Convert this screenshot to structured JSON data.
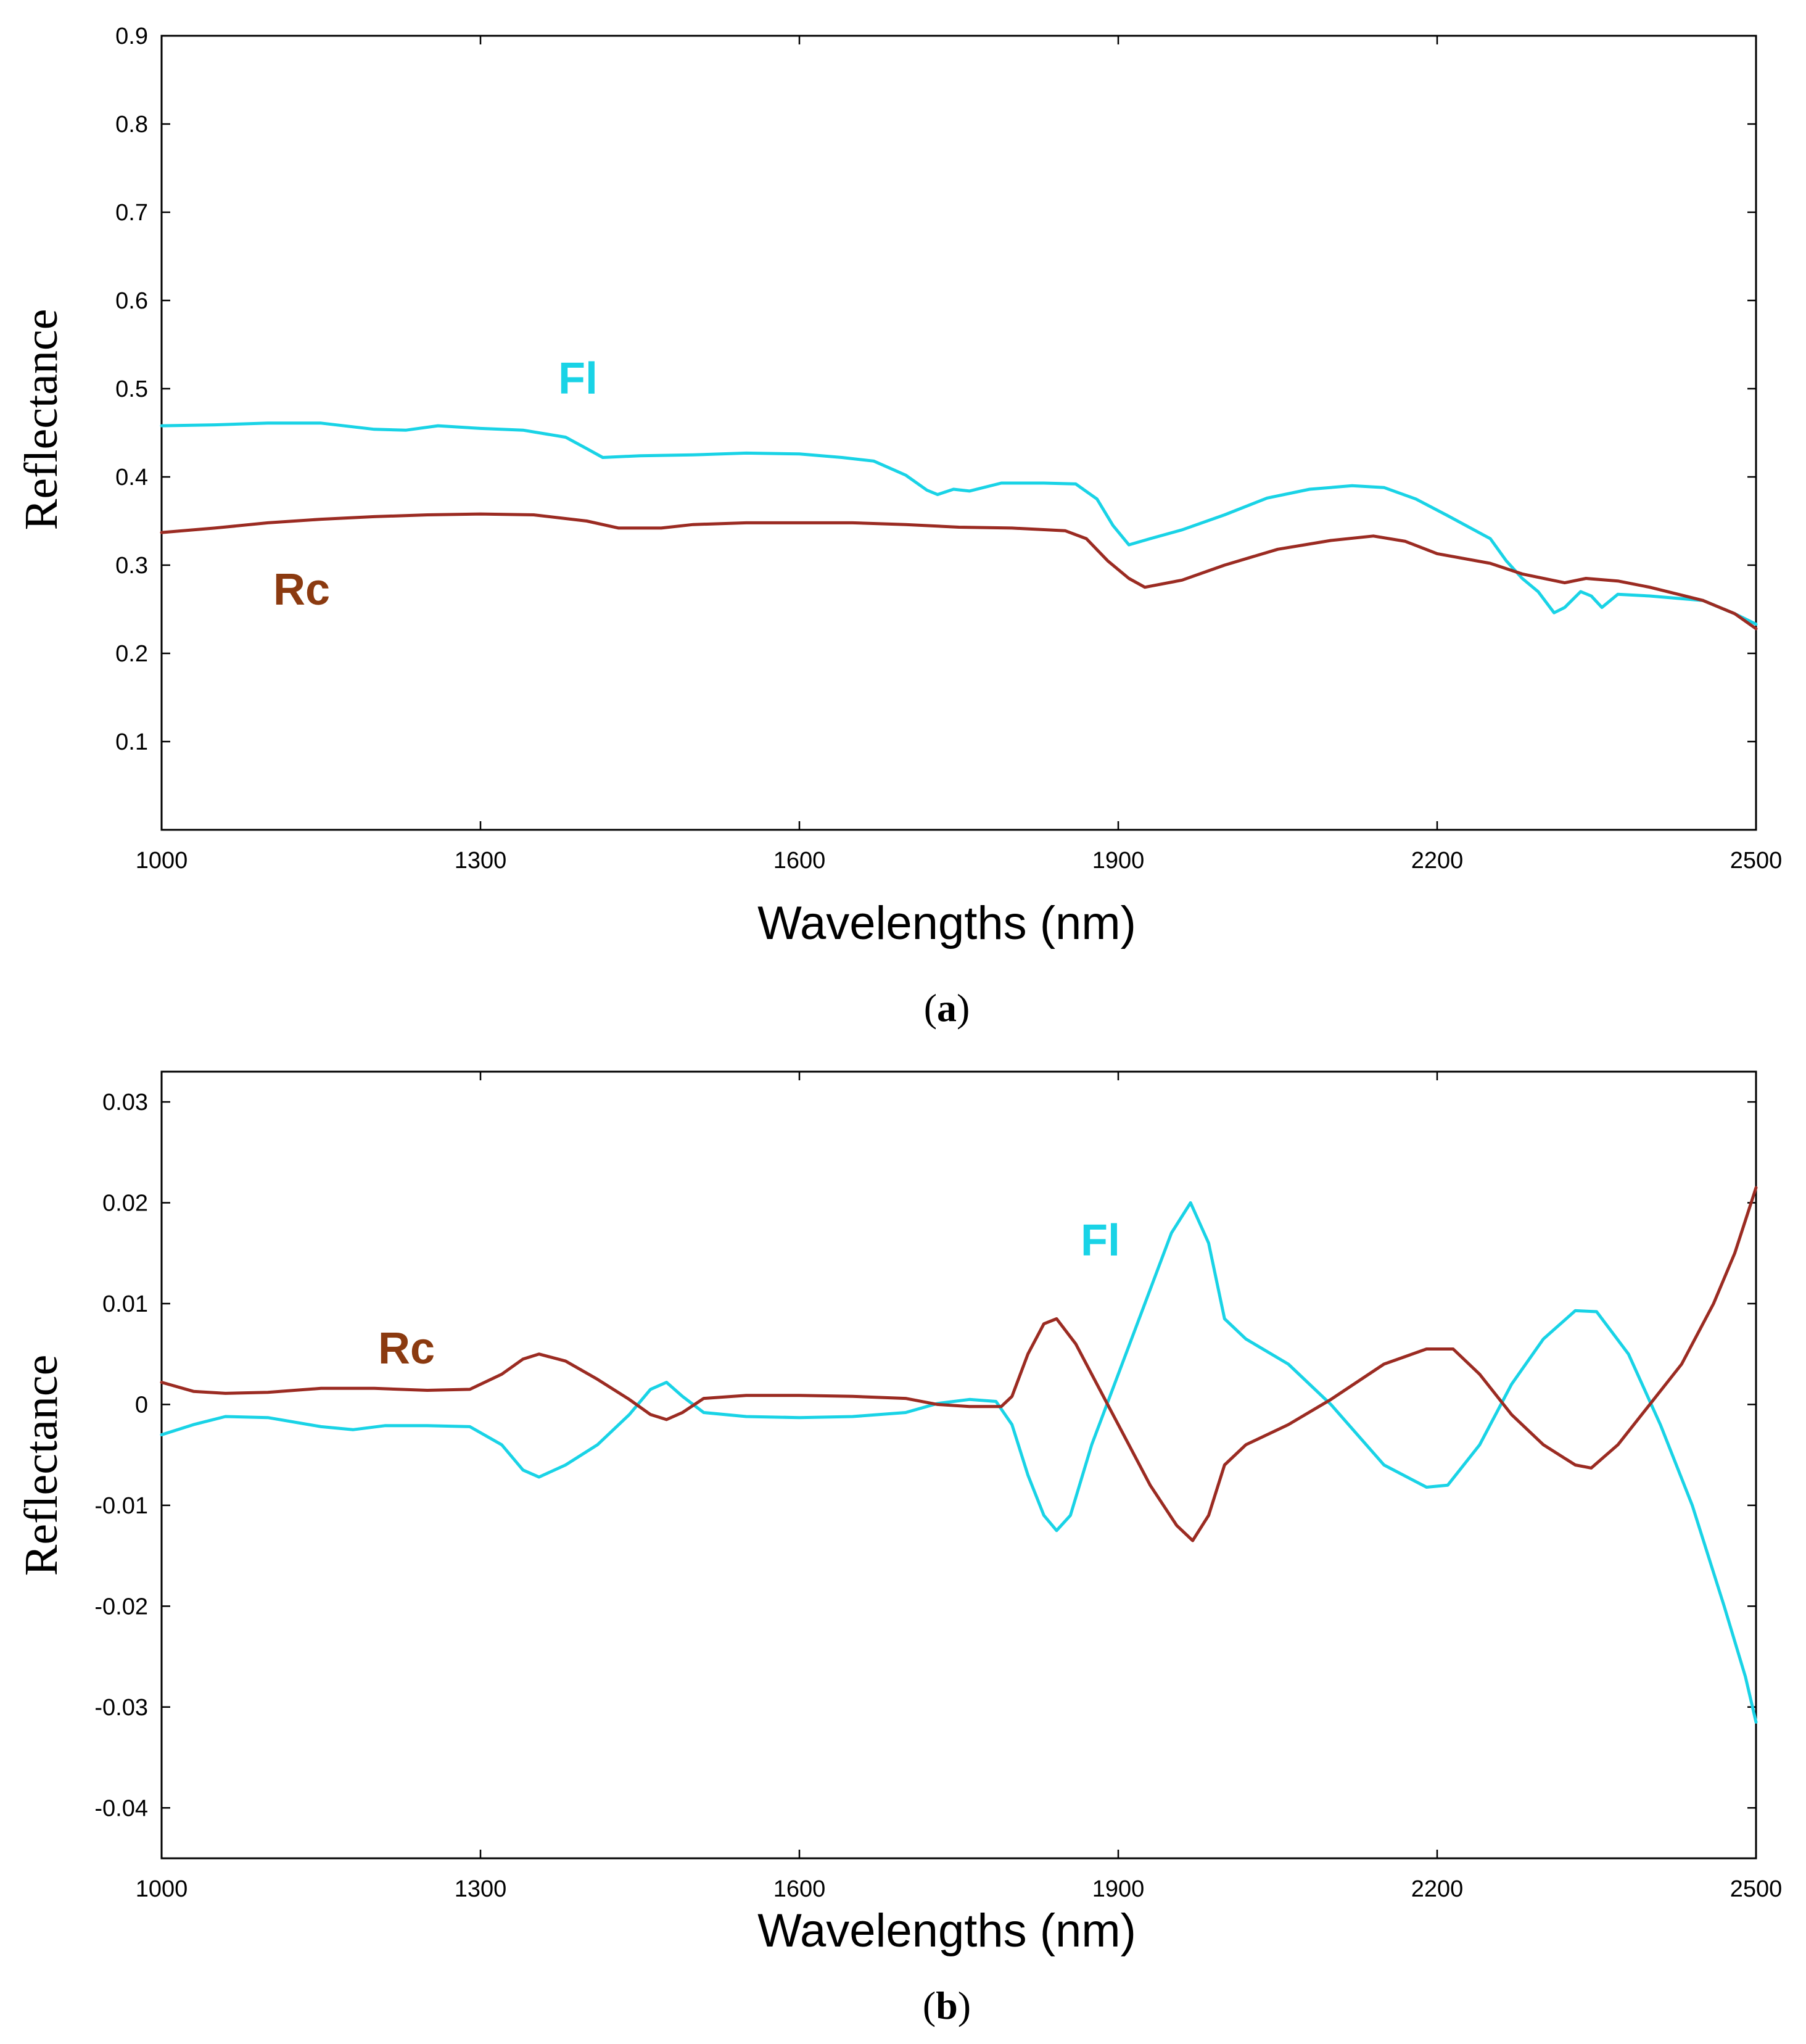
{
  "colors": {
    "fi": "#19d3e6",
    "rc": "#9b2b22",
    "rc_label": "#8b3a10"
  },
  "chart_data": [
    {
      "type": "line",
      "panel": "a",
      "caption_letter": "a",
      "xlabel": "Wavelengths (nm)",
      "ylabel": "Reflectance",
      "xlim": [
        1000,
        2500
      ],
      "ylim": [
        0,
        0.9
      ],
      "xticks": [
        1000,
        1300,
        1600,
        1900,
        2200,
        2500
      ],
      "yticks": [
        "0.1",
        "0.2",
        "0.3",
        "0.4",
        "0.5",
        "0.6",
        "0.7",
        "0.8",
        "0.9"
      ],
      "series": [
        {
          "name": "Fl",
          "color_key": "fi",
          "points": [
            [
              1000,
              0.458
            ],
            [
              1050,
              0.459
            ],
            [
              1100,
              0.461
            ],
            [
              1150,
              0.461
            ],
            [
              1200,
              0.454
            ],
            [
              1230,
              0.453
            ],
            [
              1260,
              0.458
            ],
            [
              1300,
              0.455
            ],
            [
              1340,
              0.453
            ],
            [
              1380,
              0.445
            ],
            [
              1400,
              0.432
            ],
            [
              1415,
              0.422
            ],
            [
              1450,
              0.424
            ],
            [
              1500,
              0.425
            ],
            [
              1550,
              0.427
            ],
            [
              1600,
              0.426
            ],
            [
              1640,
              0.422
            ],
            [
              1670,
              0.418
            ],
            [
              1700,
              0.402
            ],
            [
              1720,
              0.385
            ],
            [
              1730,
              0.38
            ],
            [
              1745,
              0.386
            ],
            [
              1760,
              0.384
            ],
            [
              1790,
              0.393
            ],
            [
              1830,
              0.393
            ],
            [
              1860,
              0.392
            ],
            [
              1880,
              0.375
            ],
            [
              1895,
              0.345
            ],
            [
              1910,
              0.323
            ],
            [
              1930,
              0.33
            ],
            [
              1960,
              0.34
            ],
            [
              2000,
              0.357
            ],
            [
              2040,
              0.376
            ],
            [
              2080,
              0.386
            ],
            [
              2120,
              0.39
            ],
            [
              2150,
              0.388
            ],
            [
              2180,
              0.375
            ],
            [
              2210,
              0.356
            ],
            [
              2250,
              0.33
            ],
            [
              2265,
              0.305
            ],
            [
              2280,
              0.285
            ],
            [
              2295,
              0.27
            ],
            [
              2310,
              0.246
            ],
            [
              2320,
              0.252
            ],
            [
              2335,
              0.27
            ],
            [
              2345,
              0.265
            ],
            [
              2355,
              0.252
            ],
            [
              2370,
              0.267
            ],
            [
              2400,
              0.265
            ],
            [
              2450,
              0.26
            ],
            [
              2480,
              0.245
            ],
            [
              2500,
              0.233
            ]
          ]
        },
        {
          "name": "Rc",
          "color_key": "rc",
          "points": [
            [
              1000,
              0.337
            ],
            [
              1050,
              0.342
            ],
            [
              1100,
              0.348
            ],
            [
              1150,
              0.352
            ],
            [
              1200,
              0.355
            ],
            [
              1250,
              0.357
            ],
            [
              1300,
              0.358
            ],
            [
              1350,
              0.357
            ],
            [
              1400,
              0.35
            ],
            [
              1430,
              0.342
            ],
            [
              1470,
              0.342
            ],
            [
              1500,
              0.346
            ],
            [
              1550,
              0.348
            ],
            [
              1600,
              0.348
            ],
            [
              1650,
              0.348
            ],
            [
              1700,
              0.346
            ],
            [
              1750,
              0.343
            ],
            [
              1800,
              0.342
            ],
            [
              1850,
              0.339
            ],
            [
              1870,
              0.33
            ],
            [
              1890,
              0.305
            ],
            [
              1910,
              0.285
            ],
            [
              1925,
              0.275
            ],
            [
              1960,
              0.283
            ],
            [
              2000,
              0.3
            ],
            [
              2050,
              0.318
            ],
            [
              2100,
              0.328
            ],
            [
              2140,
              0.333
            ],
            [
              2170,
              0.327
            ],
            [
              2200,
              0.313
            ],
            [
              2250,
              0.302
            ],
            [
              2280,
              0.29
            ],
            [
              2320,
              0.28
            ],
            [
              2340,
              0.285
            ],
            [
              2370,
              0.282
            ],
            [
              2400,
              0.275
            ],
            [
              2450,
              0.26
            ],
            [
              2480,
              0.245
            ],
            [
              2500,
              0.228
            ]
          ]
        }
      ],
      "labels": {
        "fi": "Fl",
        "rc": "Rc"
      }
    },
    {
      "type": "line",
      "panel": "b",
      "caption_letter": "b",
      "xlabel": "Wavelengths (nm)",
      "ylabel": "Reflectance",
      "xlim": [
        1000,
        2500
      ],
      "ylim": [
        -0.045,
        0.033
      ],
      "xticks": [
        1000,
        1300,
        1600,
        1900,
        2200,
        2500
      ],
      "yticks": [
        "0.03",
        "0.02",
        "0.01",
        "0",
        "-0.01",
        "-0.02",
        "-0.03",
        "-0.04"
      ],
      "series": [
        {
          "name": "Fl",
          "color_key": "fi",
          "points": [
            [
              1000,
              -0.003
            ],
            [
              1030,
              -0.002
            ],
            [
              1060,
              -0.0012
            ],
            [
              1100,
              -0.0013
            ],
            [
              1150,
              -0.0022
            ],
            [
              1180,
              -0.0025
            ],
            [
              1210,
              -0.0021
            ],
            [
              1250,
              -0.0021
            ],
            [
              1290,
              -0.0022
            ],
            [
              1320,
              -0.004
            ],
            [
              1340,
              -0.0065
            ],
            [
              1355,
              -0.0072
            ],
            [
              1380,
              -0.006
            ],
            [
              1410,
              -0.004
            ],
            [
              1440,
              -0.001
            ],
            [
              1460,
              0.0015
            ],
            [
              1475,
              0.0022
            ],
            [
              1490,
              0.0008
            ],
            [
              1510,
              -0.0008
            ],
            [
              1550,
              -0.0012
            ],
            [
              1600,
              -0.0013
            ],
            [
              1650,
              -0.0012
            ],
            [
              1700,
              -0.0008
            ],
            [
              1730,
              0.0001
            ],
            [
              1760,
              0.0005
            ],
            [
              1785,
              0.0003
            ],
            [
              1800,
              -0.002
            ],
            [
              1815,
              -0.007
            ],
            [
              1830,
              -0.011
            ],
            [
              1842,
              -0.0125
            ],
            [
              1855,
              -0.011
            ],
            [
              1875,
              -0.004
            ],
            [
              1900,
              0.003
            ],
            [
              1925,
              0.01
            ],
            [
              1950,
              0.017
            ],
            [
              1968,
              0.02
            ],
            [
              1985,
              0.016
            ],
            [
              2000,
              0.0085
            ],
            [
              2020,
              0.0065
            ],
            [
              2060,
              0.004
            ],
            [
              2100,
              0.0
            ],
            [
              2150,
              -0.006
            ],
            [
              2190,
              -0.0082
            ],
            [
              2210,
              -0.008
            ],
            [
              2240,
              -0.004
            ],
            [
              2270,
              0.002
            ],
            [
              2300,
              0.0065
            ],
            [
              2330,
              0.0093
            ],
            [
              2350,
              0.0092
            ],
            [
              2380,
              0.005
            ],
            [
              2410,
              -0.002
            ],
            [
              2440,
              -0.01
            ],
            [
              2470,
              -0.02
            ],
            [
              2490,
              -0.027
            ],
            [
              2500,
              -0.0315
            ]
          ]
        },
        {
          "name": "Rc",
          "color_key": "rc",
          "points": [
            [
              1000,
              0.0022
            ],
            [
              1030,
              0.0013
            ],
            [
              1060,
              0.0011
            ],
            [
              1100,
              0.0012
            ],
            [
              1150,
              0.0016
            ],
            [
              1200,
              0.0016
            ],
            [
              1250,
              0.0014
            ],
            [
              1290,
              0.0015
            ],
            [
              1320,
              0.003
            ],
            [
              1340,
              0.0045
            ],
            [
              1355,
              0.005
            ],
            [
              1380,
              0.0043
            ],
            [
              1410,
              0.0025
            ],
            [
              1440,
              0.0005
            ],
            [
              1460,
              -0.001
            ],
            [
              1475,
              -0.0015
            ],
            [
              1490,
              -0.0008
            ],
            [
              1510,
              0.0006
            ],
            [
              1550,
              0.0009
            ],
            [
              1600,
              0.0009
            ],
            [
              1650,
              0.0008
            ],
            [
              1700,
              0.0006
            ],
            [
              1730,
              0.0
            ],
            [
              1760,
              -0.0002
            ],
            [
              1790,
              -0.0002
            ],
            [
              1800,
              0.0008
            ],
            [
              1815,
              0.005
            ],
            [
              1830,
              0.008
            ],
            [
              1842,
              0.0085
            ],
            [
              1860,
              0.006
            ],
            [
              1880,
              0.002
            ],
            [
              1900,
              -0.002
            ],
            [
              1930,
              -0.008
            ],
            [
              1955,
              -0.012
            ],
            [
              1970,
              -0.0135
            ],
            [
              1985,
              -0.011
            ],
            [
              2000,
              -0.006
            ],
            [
              2020,
              -0.004
            ],
            [
              2060,
              -0.002
            ],
            [
              2100,
              0.0005
            ],
            [
              2150,
              0.004
            ],
            [
              2190,
              0.0055
            ],
            [
              2215,
              0.0055
            ],
            [
              2240,
              0.003
            ],
            [
              2270,
              -0.001
            ],
            [
              2300,
              -0.004
            ],
            [
              2330,
              -0.006
            ],
            [
              2345,
              -0.0063
            ],
            [
              2370,
              -0.004
            ],
            [
              2400,
              0.0
            ],
            [
              2430,
              0.004
            ],
            [
              2460,
              0.01
            ],
            [
              2480,
              0.015
            ],
            [
              2500,
              0.0215
            ]
          ]
        }
      ],
      "labels": {
        "fi": "Fl",
        "rc": "Rc"
      }
    }
  ]
}
